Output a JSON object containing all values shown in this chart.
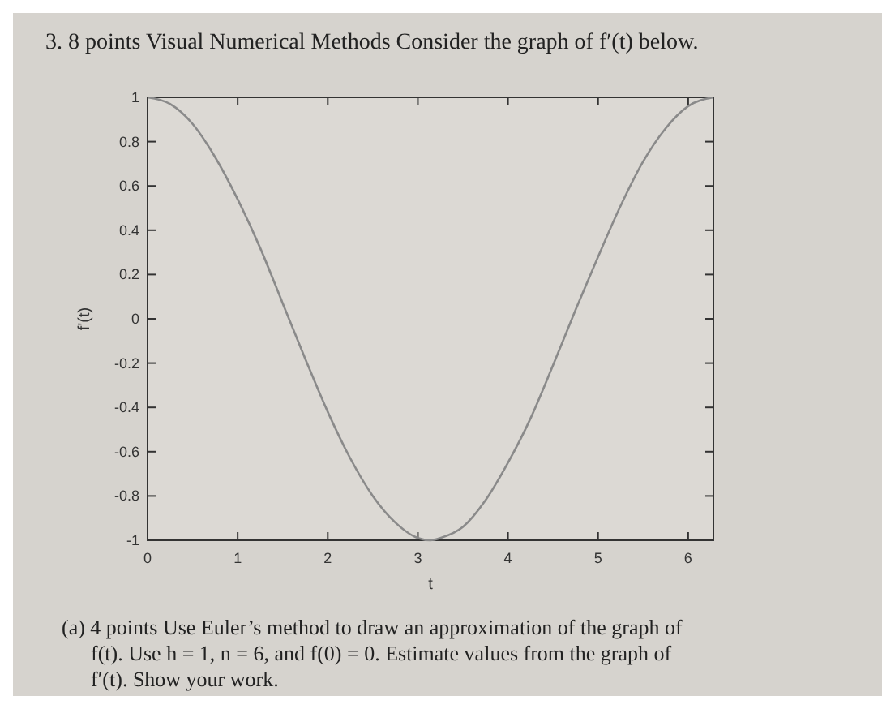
{
  "chart_data": {
    "type": "line",
    "title": "3. 8 points Visual Numerical Methods Consider the graph of f′(t) below.",
    "xlabel": "t",
    "ylabel": "f'(t)",
    "x": [
      0,
      0.25,
      0.5,
      0.75,
      1,
      1.25,
      1.5,
      1.75,
      2,
      2.25,
      2.5,
      2.75,
      3,
      3.14,
      3.25,
      3.5,
      3.75,
      4,
      4.25,
      4.5,
      4.75,
      5,
      5.25,
      5.5,
      5.75,
      6,
      6.28
    ],
    "series": [
      {
        "color": "#8a8a8a",
        "values": [
          1,
          0.97,
          0.88,
          0.73,
          0.54,
          0.32,
          0.07,
          -0.18,
          -0.42,
          -0.63,
          -0.8,
          -0.92,
          -0.99,
          -1,
          -0.99,
          -0.94,
          -0.82,
          -0.65,
          -0.45,
          -0.21,
          0.04,
          0.28,
          0.51,
          0.71,
          0.86,
          0.96,
          1
        ]
      }
    ],
    "xlim": [
      0,
      6.28
    ],
    "ylim": [
      -1,
      1
    ],
    "xticks": [
      0,
      1,
      2,
      3,
      4,
      5,
      6
    ],
    "yticks": [
      -1,
      -0.8,
      -0.6,
      -0.4,
      -0.2,
      0,
      0.2,
      0.4,
      0.6,
      0.8,
      1
    ],
    "grid": false,
    "marker": "none",
    "line_style": "solid",
    "annotations": [
      "(a) 4 points Use Euler’s method to draw an approximation of the graph of f(t). Use h = 1, n = 6, and f(0) = 0. Estimate values from the graph of f′(t). Show your work."
    ]
  }
}
